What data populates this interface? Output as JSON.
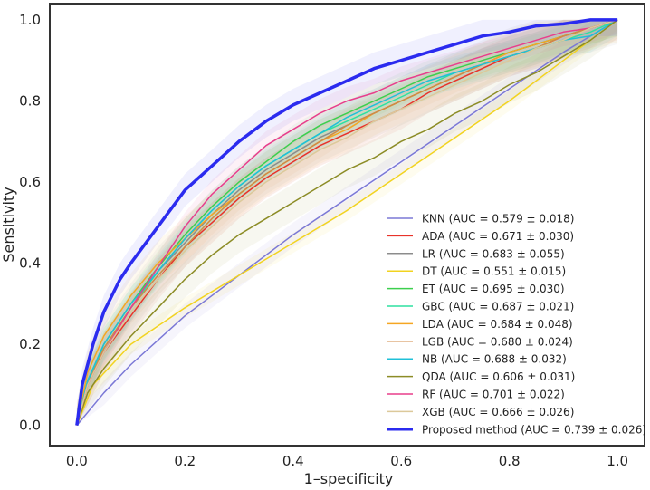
{
  "chart_data": {
    "type": "line",
    "title": "",
    "xlabel": "1–specificity",
    "ylabel": "Sensitivity",
    "xlim": [
      -0.05,
      1.05
    ],
    "ylim": [
      -0.05,
      1.04
    ],
    "xticks": [
      0.0,
      0.2,
      0.4,
      0.6,
      0.8,
      1.0
    ],
    "yticks": [
      0.0,
      0.2,
      0.4,
      0.6,
      0.8,
      1.0
    ],
    "xtick_labels": [
      "0.0",
      "0.2",
      "0.4",
      "0.6",
      "0.8",
      "1.0"
    ],
    "ytick_labels": [
      "0.0",
      "0.2",
      "0.4",
      "0.6",
      "0.8",
      "1.0"
    ],
    "grid": false,
    "legend_position": "lower-right",
    "series": [
      {
        "name": "KNN",
        "label": "KNN (AUC = 0.579 ± 0.018)",
        "color": "#7b78d6",
        "x": [
          0,
          0.05,
          0.1,
          0.2,
          0.3,
          0.4,
          0.5,
          0.6,
          0.7,
          0.8,
          0.9,
          1.0
        ],
        "y": [
          0,
          0.08,
          0.15,
          0.27,
          0.37,
          0.47,
          0.56,
          0.65,
          0.74,
          0.83,
          0.92,
          1.0
        ],
        "band": 0.03
      },
      {
        "name": "ADA",
        "label": "ADA (AUC = 0.671 ± 0.030)",
        "color": "#e8332a",
        "x": [
          0,
          0.02,
          0.05,
          0.1,
          0.15,
          0.2,
          0.25,
          0.3,
          0.35,
          0.4,
          0.45,
          0.5,
          0.55,
          0.6,
          0.65,
          0.7,
          0.75,
          0.8,
          0.85,
          0.9,
          0.95,
          1.0
        ],
        "y": [
          0,
          0.1,
          0.18,
          0.27,
          0.36,
          0.44,
          0.5,
          0.56,
          0.61,
          0.65,
          0.69,
          0.72,
          0.75,
          0.78,
          0.82,
          0.85,
          0.88,
          0.91,
          0.93,
          0.96,
          0.98,
          1.0
        ],
        "band": 0.05
      },
      {
        "name": "LR",
        "label": "LR (AUC = 0.683 ± 0.055)",
        "color": "#8c8c8c",
        "x": [
          0,
          0.02,
          0.05,
          0.1,
          0.15,
          0.2,
          0.25,
          0.3,
          0.35,
          0.4,
          0.45,
          0.5,
          0.55,
          0.6,
          0.65,
          0.7,
          0.75,
          0.8,
          0.85,
          0.9,
          0.95,
          1.0
        ],
        "y": [
          0,
          0.11,
          0.19,
          0.29,
          0.38,
          0.45,
          0.52,
          0.58,
          0.63,
          0.67,
          0.71,
          0.74,
          0.77,
          0.8,
          0.83,
          0.86,
          0.89,
          0.92,
          0.94,
          0.96,
          0.98,
          1.0
        ],
        "band": 0.06
      },
      {
        "name": "DT",
        "label": "DT (AUC = 0.551 ± 0.015)",
        "color": "#f2d320",
        "x": [
          0,
          0.03,
          0.1,
          0.2,
          0.3,
          0.4,
          0.5,
          0.6,
          0.7,
          0.8,
          0.9,
          1.0
        ],
        "y": [
          0,
          0.1,
          0.2,
          0.29,
          0.37,
          0.45,
          0.53,
          0.62,
          0.71,
          0.8,
          0.9,
          1.0
        ],
        "band": 0.025
      },
      {
        "name": "ET",
        "label": "ET (AUC = 0.695 ± 0.030)",
        "color": "#3ccf4e",
        "x": [
          0,
          0.02,
          0.05,
          0.1,
          0.15,
          0.2,
          0.25,
          0.3,
          0.35,
          0.4,
          0.45,
          0.5,
          0.55,
          0.6,
          0.65,
          0.7,
          0.75,
          0.8,
          0.85,
          0.9,
          0.95,
          1.0
        ],
        "y": [
          0,
          0.11,
          0.2,
          0.3,
          0.39,
          0.47,
          0.54,
          0.6,
          0.65,
          0.7,
          0.74,
          0.77,
          0.8,
          0.83,
          0.86,
          0.88,
          0.9,
          0.92,
          0.94,
          0.96,
          0.98,
          1.0
        ],
        "band": 0.04
      },
      {
        "name": "GBC",
        "label": "GBC (AUC = 0.687 ± 0.021)",
        "color": "#2ee0a0",
        "x": [
          0,
          0.02,
          0.05,
          0.1,
          0.15,
          0.2,
          0.25,
          0.3,
          0.35,
          0.4,
          0.45,
          0.5,
          0.55,
          0.6,
          0.65,
          0.7,
          0.75,
          0.8,
          0.85,
          0.9,
          0.95,
          1.0
        ],
        "y": [
          0,
          0.11,
          0.19,
          0.29,
          0.38,
          0.46,
          0.53,
          0.59,
          0.64,
          0.68,
          0.72,
          0.75,
          0.78,
          0.81,
          0.84,
          0.87,
          0.89,
          0.91,
          0.93,
          0.95,
          0.97,
          1.0
        ],
        "band": 0.035
      },
      {
        "name": "LDA",
        "label": "LDA (AUC = 0.684 ± 0.048)",
        "color": "#f5a623",
        "x": [
          0,
          0.02,
          0.05,
          0.1,
          0.15,
          0.2,
          0.25,
          0.3,
          0.35,
          0.4,
          0.45,
          0.5,
          0.55,
          0.6,
          0.65,
          0.7,
          0.75,
          0.8,
          0.85,
          0.9,
          0.95,
          1.0
        ],
        "y": [
          0,
          0.13,
          0.22,
          0.32,
          0.4,
          0.46,
          0.52,
          0.57,
          0.62,
          0.66,
          0.7,
          0.73,
          0.77,
          0.8,
          0.83,
          0.86,
          0.89,
          0.92,
          0.94,
          0.96,
          0.98,
          1.0
        ],
        "band": 0.055
      },
      {
        "name": "LGB",
        "label": "LGB (AUC = 0.680 ± 0.024)",
        "color": "#d08a45",
        "x": [
          0,
          0.02,
          0.05,
          0.1,
          0.15,
          0.2,
          0.25,
          0.3,
          0.35,
          0.4,
          0.45,
          0.5,
          0.55,
          0.6,
          0.65,
          0.7,
          0.75,
          0.8,
          0.85,
          0.9,
          0.95,
          1.0
        ],
        "y": [
          0,
          0.1,
          0.19,
          0.29,
          0.37,
          0.44,
          0.51,
          0.57,
          0.62,
          0.66,
          0.7,
          0.74,
          0.77,
          0.8,
          0.83,
          0.86,
          0.89,
          0.91,
          0.93,
          0.96,
          0.98,
          1.0
        ],
        "band": 0.04
      },
      {
        "name": "NB",
        "label": "NB (AUC = 0.688 ± 0.032)",
        "color": "#1fc0d8",
        "x": [
          0,
          0.02,
          0.05,
          0.1,
          0.15,
          0.2,
          0.25,
          0.3,
          0.35,
          0.4,
          0.45,
          0.5,
          0.55,
          0.6,
          0.65,
          0.7,
          0.75,
          0.8,
          0.85,
          0.9,
          0.95,
          1.0
        ],
        "y": [
          0,
          0.11,
          0.2,
          0.3,
          0.38,
          0.46,
          0.53,
          0.59,
          0.64,
          0.68,
          0.72,
          0.76,
          0.79,
          0.82,
          0.85,
          0.87,
          0.89,
          0.91,
          0.93,
          0.95,
          0.96,
          1.0
        ],
        "band": 0.04
      },
      {
        "name": "QDA",
        "label": "QDA (AUC = 0.606 ± 0.031)",
        "color": "#8c8c26",
        "x": [
          0,
          0.02,
          0.05,
          0.1,
          0.15,
          0.2,
          0.25,
          0.3,
          0.35,
          0.4,
          0.45,
          0.5,
          0.55,
          0.6,
          0.65,
          0.7,
          0.75,
          0.8,
          0.85,
          0.9,
          0.95,
          1.0
        ],
        "y": [
          0,
          0.08,
          0.14,
          0.22,
          0.29,
          0.36,
          0.42,
          0.47,
          0.51,
          0.55,
          0.59,
          0.63,
          0.66,
          0.7,
          0.73,
          0.77,
          0.8,
          0.84,
          0.87,
          0.91,
          0.95,
          1.0
        ],
        "band": 0.045
      },
      {
        "name": "RF",
        "label": "RF (AUC = 0.701 ± 0.022)",
        "color": "#e83e8c",
        "x": [
          0,
          0.02,
          0.05,
          0.1,
          0.15,
          0.2,
          0.25,
          0.3,
          0.35,
          0.4,
          0.45,
          0.5,
          0.55,
          0.6,
          0.65,
          0.7,
          0.75,
          0.8,
          0.85,
          0.9,
          0.95,
          1.0
        ],
        "y": [
          0,
          0.1,
          0.18,
          0.29,
          0.39,
          0.49,
          0.57,
          0.63,
          0.69,
          0.73,
          0.77,
          0.8,
          0.82,
          0.85,
          0.87,
          0.89,
          0.91,
          0.93,
          0.95,
          0.97,
          0.98,
          1.0
        ],
        "band": 0.035
      },
      {
        "name": "XGB",
        "label": "XGB (AUC = 0.666 ± 0.026)",
        "color": "#dcc99a",
        "x": [
          0,
          0.02,
          0.05,
          0.1,
          0.15,
          0.2,
          0.25,
          0.3,
          0.35,
          0.4,
          0.45,
          0.5,
          0.55,
          0.6,
          0.65,
          0.7,
          0.75,
          0.8,
          0.85,
          0.9,
          0.95,
          1.0
        ],
        "y": [
          0,
          0.1,
          0.18,
          0.28,
          0.36,
          0.43,
          0.49,
          0.55,
          0.6,
          0.64,
          0.68,
          0.71,
          0.75,
          0.78,
          0.81,
          0.84,
          0.87,
          0.9,
          0.93,
          0.95,
          0.98,
          1.0
        ],
        "band": 0.04
      },
      {
        "name": "Proposed method",
        "label": "Proposed method (AUC = 0.739 ± 0.026)",
        "color": "#2b2bef",
        "x": [
          0,
          0.01,
          0.03,
          0.05,
          0.08,
          0.1,
          0.15,
          0.2,
          0.25,
          0.3,
          0.35,
          0.4,
          0.45,
          0.5,
          0.55,
          0.6,
          0.65,
          0.7,
          0.75,
          0.8,
          0.85,
          0.9,
          0.95,
          1.0
        ],
        "y": [
          0,
          0.1,
          0.2,
          0.28,
          0.36,
          0.4,
          0.49,
          0.58,
          0.64,
          0.7,
          0.75,
          0.79,
          0.82,
          0.85,
          0.88,
          0.9,
          0.92,
          0.94,
          0.96,
          0.97,
          0.985,
          0.99,
          1.0,
          1.0
        ],
        "band": 0.04,
        "bold": true
      }
    ]
  }
}
